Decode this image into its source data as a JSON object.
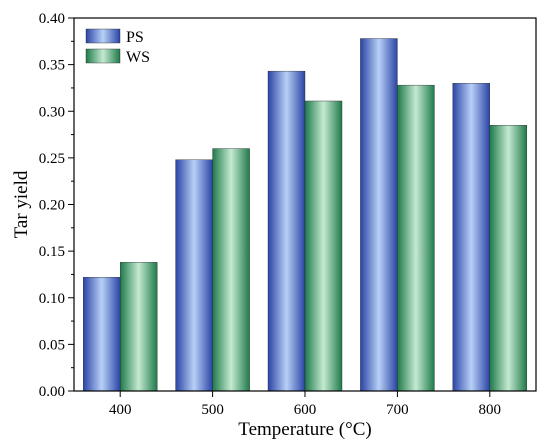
{
  "chart_data": {
    "type": "bar",
    "categories": [
      "400",
      "500",
      "600",
      "700",
      "800"
    ],
    "series": [
      {
        "name": "PS",
        "values": [
          0.122,
          0.248,
          0.343,
          0.378,
          0.33
        ],
        "color": "#4a6fc4"
      },
      {
        "name": "WS",
        "values": [
          0.138,
          0.26,
          0.311,
          0.328,
          0.285
        ],
        "color": "#4a9a6e"
      }
    ],
    "xlabel": "Temperature (°C)",
    "ylabel": "Tar yield",
    "ylim": [
      0.0,
      0.4
    ],
    "yticks": [
      "0.00",
      "0.05",
      "0.10",
      "0.15",
      "0.20",
      "0.25",
      "0.30",
      "0.35",
      "0.40"
    ],
    "grid": false,
    "legend_position": "top-left"
  }
}
